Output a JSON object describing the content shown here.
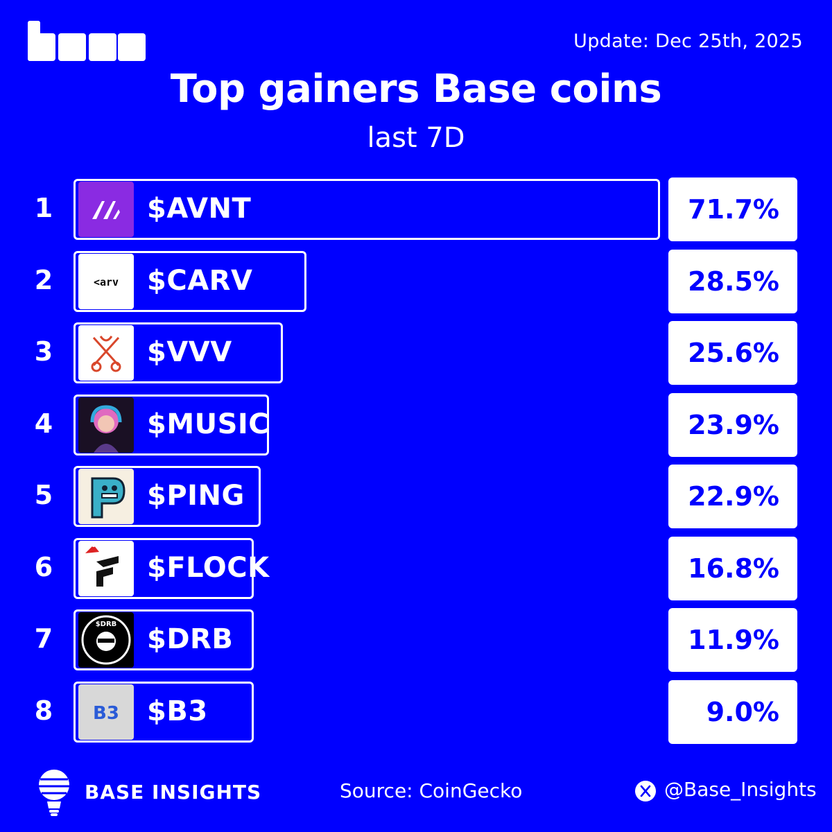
{
  "header": {
    "update": "Update: Dec 25th, 2025",
    "title": "Top gainers Base coins",
    "subtitle": "last 7D"
  },
  "footer": {
    "brand": "BASE INSIGHTS",
    "source": "Source: CoinGecko",
    "handle": "@Base_Insights"
  },
  "colors": {
    "background": "#0000FF",
    "foreground": "#FFFFFF",
    "value_text": "#0000FF"
  },
  "chart_data": {
    "type": "bar",
    "orientation": "horizontal",
    "title": "Top gainers Base coins",
    "subtitle": "last 7D",
    "ranks": [
      "1",
      "2",
      "3",
      "4",
      "5",
      "6",
      "7",
      "8"
    ],
    "categories": [
      "$AVNT",
      "$CARV",
      "$VVV",
      "$MUSIC",
      "$PING",
      "$FLOCK",
      "$DRB",
      "$B3"
    ],
    "values": [
      71.7,
      28.5,
      25.6,
      23.9,
      22.9,
      16.8,
      11.9,
      9.0
    ],
    "value_labels": [
      "71.7%",
      "28.5%",
      "25.6%",
      "23.9%",
      "22.9%",
      "16.8%",
      "11.9%",
      "9.0%"
    ],
    "icons": [
      "avnt-icon",
      "carv-icon",
      "vvv-icon",
      "music-icon",
      "ping-icon",
      "flock-icon",
      "drb-icon",
      "b3-icon"
    ]
  }
}
